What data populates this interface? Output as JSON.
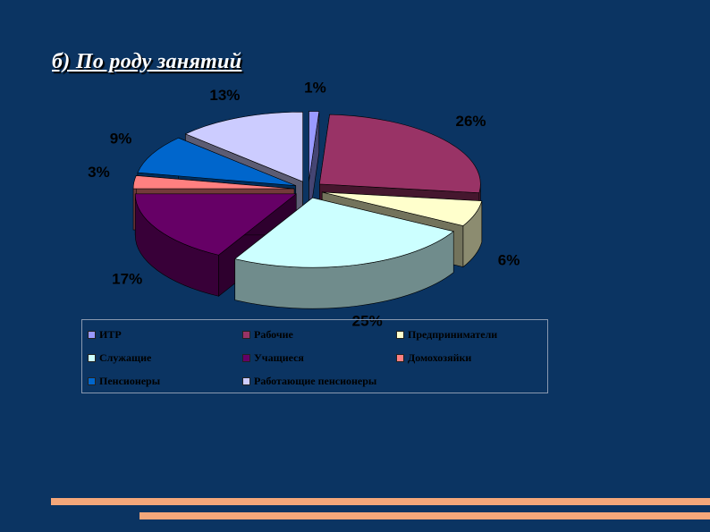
{
  "slide": {
    "title": "б) По роду занятий"
  },
  "chart_data": {
    "type": "pie",
    "style": "exploded 3D pie",
    "slices": [
      {
        "name": "ИТР",
        "value": 1,
        "label": "1%",
        "color": "#9999ff"
      },
      {
        "name": "Рабочие",
        "value": 26,
        "label": "26%",
        "color": "#993366"
      },
      {
        "name": "Предприниматели",
        "value": 6,
        "label": "6%",
        "color": "#ffffcc"
      },
      {
        "name": "Служащие",
        "value": 25,
        "label": "25%",
        "color": "#ccffff"
      },
      {
        "name": "Учащиеся",
        "value": 17,
        "label": "17%",
        "color": "#660066"
      },
      {
        "name": "Домохозяйки",
        "value": 3,
        "label": "3%",
        "color": "#ff8080"
      },
      {
        "name": "Пенсионеры",
        "value": 9,
        "label": "9%",
        "color": "#0066cc"
      },
      {
        "name": "Работающие пенсионеры",
        "value": 13,
        "label": "13%",
        "color": "#ccccff"
      }
    ],
    "legend_position": "bottom"
  }
}
